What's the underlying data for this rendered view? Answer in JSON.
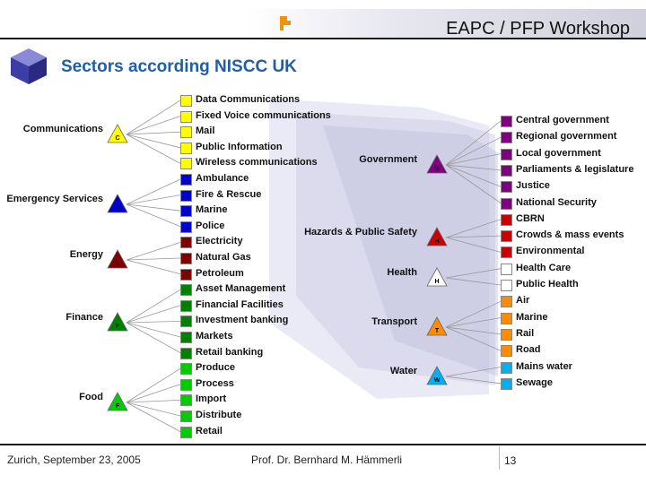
{
  "header": {
    "title": "EAPC / PFP Workshop"
  },
  "slide": {
    "title": "Sectors according NISCC UK"
  },
  "footer": {
    "location_date": "Zurich, September 23, 2005",
    "author": "Prof. Dr. Bernhard M. Hämmerli",
    "page": "13"
  },
  "left_tree": {
    "sectors": [
      {
        "name": "Communications",
        "letter": "C",
        "color": "#ffff00"
      },
      {
        "name": "Emergency Services",
        "letter": "E",
        "color": "#0000cc"
      },
      {
        "name": "Energy",
        "letter": "E",
        "color": "#800000"
      },
      {
        "name": "Finance",
        "letter": "F",
        "color": "#008000"
      },
      {
        "name": "Food",
        "letter": "F",
        "color": "#00cc00"
      }
    ],
    "items": [
      "Data Communications",
      "Fixed Voice communications",
      "Mail",
      "Public Information",
      "Wireless communications",
      "Ambulance",
      "Fire & Rescue",
      "Marine",
      "Police",
      "Electricity",
      "Natural Gas",
      "Petroleum",
      "Asset Management",
      "Financial Facilities",
      "Investment banking",
      "Markets",
      "Retail banking",
      "Produce",
      "Process",
      "Import",
      "Distribute",
      "Retail"
    ]
  },
  "right_tree": {
    "sectors": [
      {
        "name": "Government",
        "letter": "G",
        "color": "#800080"
      },
      {
        "name": "Hazards & Public Safety",
        "letter": "H",
        "color": "#cc0000"
      },
      {
        "name": "Health",
        "letter": "H",
        "color": "#ffffff"
      },
      {
        "name": "Transport",
        "letter": "T",
        "color": "#ff8c00"
      },
      {
        "name": "Water",
        "letter": "W",
        "color": "#00b0f0"
      }
    ],
    "items": [
      "Central government",
      "Regional government",
      "Local government",
      "Parliaments & legislature",
      "Justice",
      "National Security",
      "CBRN",
      "Crowds & mass events",
      "Environmental",
      "Health Care",
      "Public Health",
      "Air",
      "Marine",
      "Rail",
      "Road",
      "Mains water",
      "Sewage"
    ]
  },
  "colors": {
    "title_blue": "#1f5fa8"
  }
}
